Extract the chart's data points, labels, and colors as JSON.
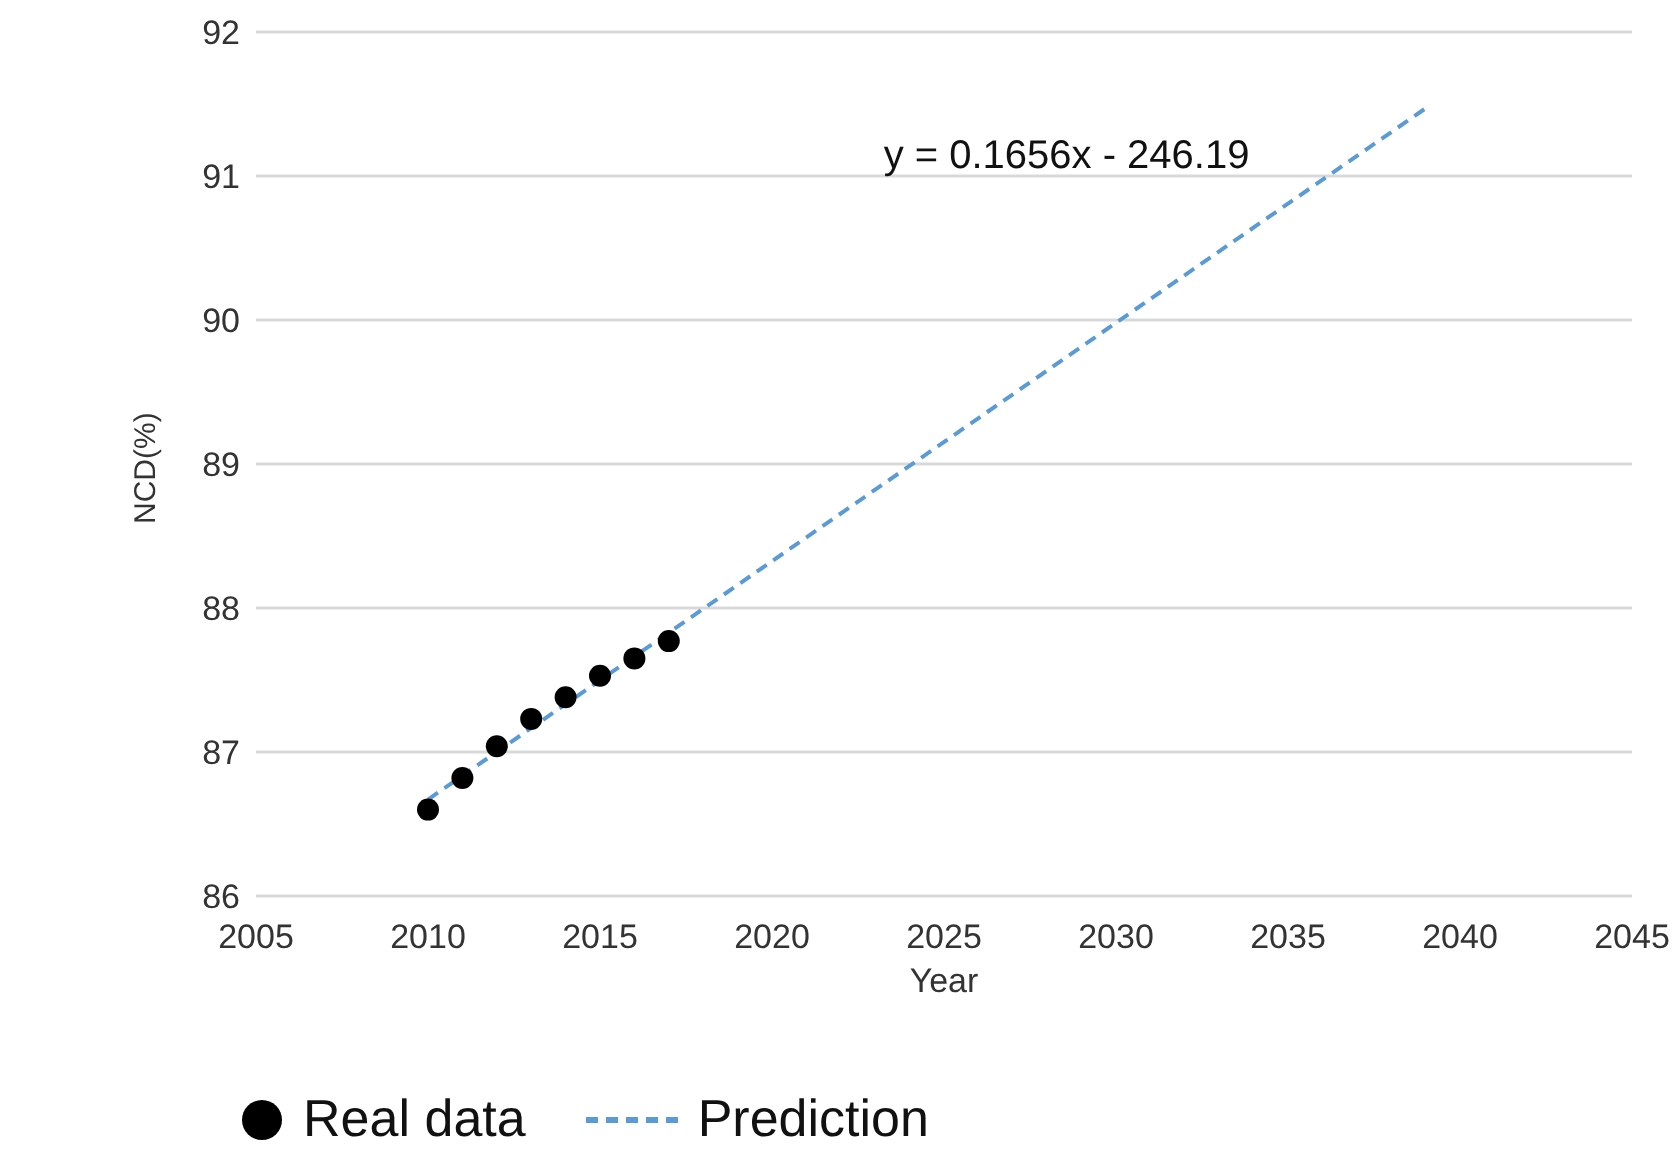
{
  "chart_data": {
    "type": "scatter",
    "xlabel": "Year",
    "ylabel": "NCD(%)",
    "xlim": [
      2005,
      2045
    ],
    "xticks": [
      2005,
      2010,
      2015,
      2020,
      2025,
      2030,
      2035,
      2040,
      2045
    ],
    "ylim": [
      86,
      92
    ],
    "yticks": [
      86,
      87,
      88,
      89,
      90,
      91,
      92
    ],
    "grid": "y",
    "legend": "bottom",
    "series": [
      {
        "name": "Real data",
        "color": "#000000",
        "marker": "circle",
        "x": [
          2010,
          2011,
          2012,
          2013,
          2014,
          2015,
          2016,
          2017
        ],
        "values": [
          86.6,
          86.82,
          87.04,
          87.23,
          87.38,
          87.53,
          87.65,
          87.77
        ]
      },
      {
        "name": "Prediction",
        "type": "line",
        "color": "#5b9bd5",
        "line_style": "dashed",
        "marker": "none",
        "x": [
          2010,
          2039
        ],
        "values": [
          86.67,
          91.47
        ]
      }
    ],
    "annotations": [
      "y = 0.1656x - 246.19"
    ]
  }
}
